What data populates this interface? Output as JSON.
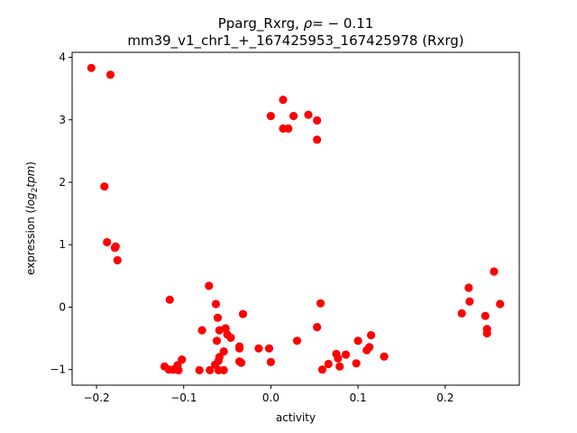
{
  "chart_data": {
    "type": "scatter",
    "title_prefix": "Pparg_Rxrg, ",
    "title_rho_symbol": "ρ",
    "title_rho_value": "= − 0.11",
    "subtitle": "mm39_v1_chr1_+_167425953_167425978 (Rxrg)",
    "xlabel": "activity",
    "ylabel_prefix": "expression (",
    "ylabel_math_base": "log",
    "ylabel_math_sub": "2",
    "ylabel_math_tail": "tpm",
    "ylabel_suffix": ")",
    "xlim": [
      -0.228,
      0.285
    ],
    "ylim": [
      -1.25,
      4.08
    ],
    "xticks": [
      {
        "value": -0.2,
        "label": "−0.2"
      },
      {
        "value": -0.1,
        "label": "−0.1"
      },
      {
        "value": 0.0,
        "label": "0.0"
      },
      {
        "value": 0.1,
        "label": "0.1"
      },
      {
        "value": 0.2,
        "label": "0.2"
      }
    ],
    "yticks": [
      {
        "value": -1,
        "label": "−1"
      },
      {
        "value": 0,
        "label": "0"
      },
      {
        "value": 1,
        "label": "1"
      },
      {
        "value": 2,
        "label": "2"
      },
      {
        "value": 3,
        "label": "3"
      },
      {
        "value": 4,
        "label": "4"
      }
    ],
    "marker_color": "#ff0000",
    "points": [
      {
        "x": -0.206,
        "y": 3.83
      },
      {
        "x": -0.184,
        "y": 3.72
      },
      {
        "x": -0.191,
        "y": 1.93
      },
      {
        "x": -0.188,
        "y": 1.04
      },
      {
        "x": -0.178,
        "y": 0.97
      },
      {
        "x": -0.179,
        "y": 0.95
      },
      {
        "x": -0.176,
        "y": 0.75
      },
      {
        "x": 0.0,
        "y": 3.06
      },
      {
        "x": 0.014,
        "y": 3.32
      },
      {
        "x": 0.014,
        "y": 2.86
      },
      {
        "x": 0.02,
        "y": 2.86
      },
      {
        "x": 0.026,
        "y": 3.06
      },
      {
        "x": 0.043,
        "y": 3.08
      },
      {
        "x": 0.053,
        "y": 2.99
      },
      {
        "x": 0.053,
        "y": 2.68
      },
      {
        "x": -0.116,
        "y": 0.12
      },
      {
        "x": -0.071,
        "y": 0.34
      },
      {
        "x": -0.063,
        "y": 0.05
      },
      {
        "x": -0.061,
        "y": -0.17
      },
      {
        "x": -0.059,
        "y": -0.37
      },
      {
        "x": -0.052,
        "y": -0.34
      },
      {
        "x": -0.05,
        "y": -0.44
      },
      {
        "x": -0.046,
        "y": -0.49
      },
      {
        "x": -0.062,
        "y": -0.54
      },
      {
        "x": -0.032,
        "y": -0.11
      },
      {
        "x": -0.079,
        "y": -0.37
      },
      {
        "x": -0.036,
        "y": -0.63
      },
      {
        "x": -0.036,
        "y": -0.66
      },
      {
        "x": -0.054,
        "y": -0.71
      },
      {
        "x": -0.059,
        "y": -0.8
      },
      {
        "x": -0.06,
        "y": -0.86
      },
      {
        "x": -0.064,
        "y": -0.92
      },
      {
        "x": -0.036,
        "y": -0.87
      },
      {
        "x": -0.034,
        "y": -0.89
      },
      {
        "x": -0.014,
        "y": -0.66
      },
      {
        "x": -0.002,
        "y": -0.66
      },
      {
        "x": 0.0,
        "y": -0.88
      },
      {
        "x": -0.102,
        "y": -0.84
      },
      {
        "x": -0.107,
        "y": -0.93
      },
      {
        "x": -0.122,
        "y": -0.95
      },
      {
        "x": -0.117,
        "y": -1.0
      },
      {
        "x": -0.112,
        "y": -1.0
      },
      {
        "x": -0.106,
        "y": -1.01
      },
      {
        "x": -0.082,
        "y": -1.01
      },
      {
        "x": -0.07,
        "y": -1.01
      },
      {
        "x": -0.06,
        "y": -1.01
      },
      {
        "x": -0.054,
        "y": -1.01
      },
      {
        "x": 0.03,
        "y": -0.54
      },
      {
        "x": 0.053,
        "y": -0.32
      },
      {
        "x": 0.057,
        "y": 0.06
      },
      {
        "x": 0.059,
        "y": -1.0
      },
      {
        "x": 0.066,
        "y": -0.91
      },
      {
        "x": 0.075,
        "y": -0.75
      },
      {
        "x": 0.077,
        "y": -0.82
      },
      {
        "x": 0.079,
        "y": -0.95
      },
      {
        "x": 0.086,
        "y": -0.76
      },
      {
        "x": 0.098,
        "y": -0.9
      },
      {
        "x": 0.1,
        "y": -0.54
      },
      {
        "x": 0.11,
        "y": -0.69
      },
      {
        "x": 0.113,
        "y": -0.64
      },
      {
        "x": 0.115,
        "y": -0.45
      },
      {
        "x": 0.13,
        "y": -0.79
      },
      {
        "x": 0.219,
        "y": -0.1
      },
      {
        "x": 0.227,
        "y": 0.31
      },
      {
        "x": 0.228,
        "y": 0.09
      },
      {
        "x": 0.246,
        "y": -0.14
      },
      {
        "x": 0.248,
        "y": -0.35
      },
      {
        "x": 0.248,
        "y": -0.42
      },
      {
        "x": 0.256,
        "y": 0.57
      },
      {
        "x": 0.263,
        "y": 0.05
      }
    ]
  }
}
